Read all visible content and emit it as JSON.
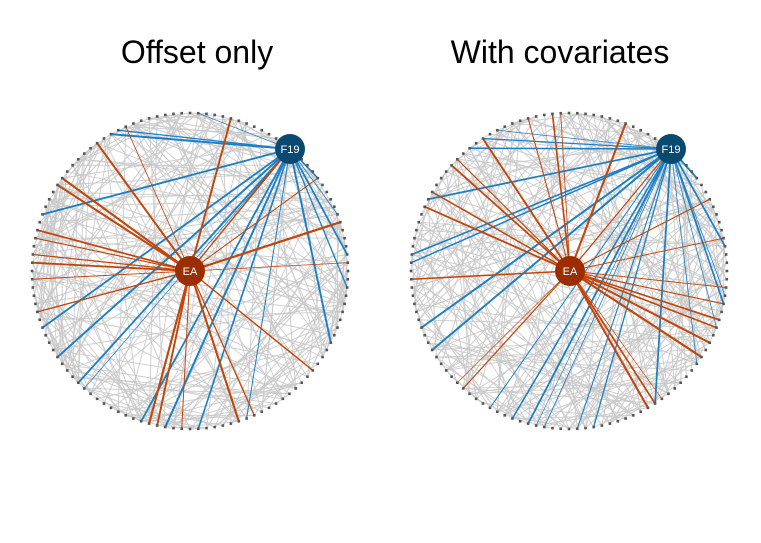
{
  "panels": [
    {
      "id": "offset",
      "title": "Offset only",
      "hubs": {
        "blue_label": "F19",
        "orange_label": "EA"
      },
      "colors": {
        "blue": "#0a4a70",
        "orange": "#9a2e00",
        "blue_edge": "#1a7fc4",
        "orange_edge": "#c0460a",
        "gray_edge": "#c8c8c8",
        "rim": "#555555"
      }
    },
    {
      "id": "covariates",
      "title": "With covariates",
      "hubs": {
        "blue_label": "F19",
        "orange_label": "EA"
      },
      "colors": {
        "blue": "#0a4a70",
        "orange": "#9a2e00",
        "blue_edge": "#1a7fc4",
        "orange_edge": "#c0460a",
        "gray_edge": "#c8c8c8",
        "rim": "#555555"
      }
    }
  ]
}
